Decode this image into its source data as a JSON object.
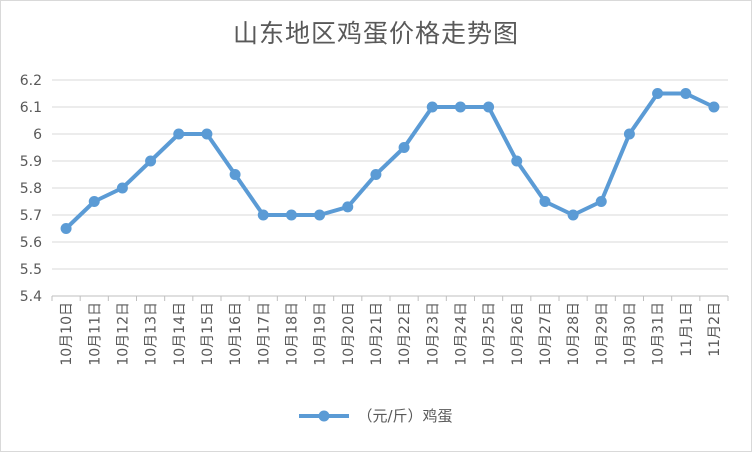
{
  "chart_data": {
    "type": "line",
    "title": "山东地区鸡蛋价格走势图",
    "xlabel": "",
    "ylabel": "",
    "categories": [
      "10月10日",
      "10月11日",
      "10月12日",
      "10月13日",
      "10月14日",
      "10月15日",
      "10月16日",
      "10月17日",
      "10月18日",
      "10月19日",
      "10月20日",
      "10月21日",
      "10月22日",
      "10月23日",
      "10月24日",
      "10月25日",
      "10月26日",
      "10月27日",
      "10月28日",
      "10月29日",
      "10月30日",
      "10月31日",
      "11月1日",
      "11月2日"
    ],
    "series": [
      {
        "name": "（元/斤）鸡蛋",
        "color": "#5b9bd5",
        "values": [
          5.65,
          5.75,
          5.8,
          5.9,
          6.0,
          6.0,
          5.85,
          5.7,
          5.7,
          5.7,
          5.73,
          5.85,
          5.95,
          6.1,
          6.1,
          6.1,
          5.9,
          5.75,
          5.7,
          5.75,
          6.0,
          6.15,
          6.15,
          6.1
        ]
      }
    ],
    "ylim": [
      5.4,
      6.2
    ],
    "yticks": [
      "5.4",
      "5.5",
      "5.6",
      "5.7",
      "5.8",
      "5.9",
      "6",
      "6.1",
      "6.2"
    ],
    "grid": true,
    "legend_position": "bottom"
  }
}
